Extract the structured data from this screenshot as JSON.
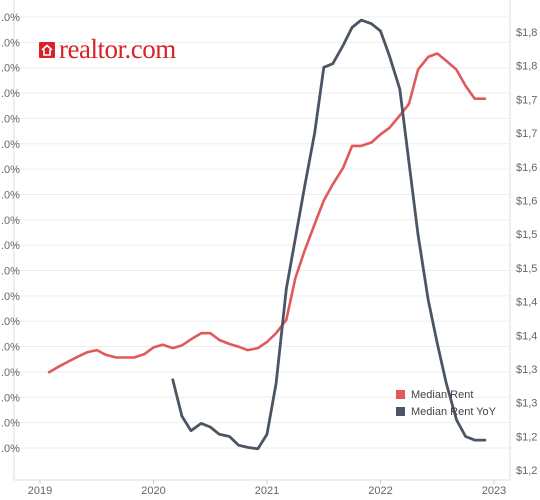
{
  "logo": {
    "text": "realtor.com",
    "color": "#d92228"
  },
  "chart_data": {
    "type": "line",
    "x_ticks": [
      "2019",
      "2020",
      "2021",
      "2022",
      "2023"
    ],
    "x_range": [
      2019.0,
      2023.1
    ],
    "left_axis": {
      "ticks": [
        ".0%",
        ".0%",
        ".0%",
        ".0%",
        ".0%",
        ".0%",
        ".0%",
        ".0%",
        ".0%",
        ".0%",
        ".0%",
        ".0%",
        ".0%",
        ".0%",
        ".0%",
        ".0%",
        ".0%",
        ".0%"
      ]
    },
    "right_axis": {
      "ticks": [
        "$1,8",
        "$1,8",
        "$1,7",
        "$1,7",
        "$1,6",
        "$1,6",
        "$1,5",
        "$1,5",
        "$1,4",
        "$1,4",
        "$1,3",
        "$1,3",
        "$1,2",
        "$1,2"
      ]
    },
    "grid": true,
    "legend_position": "bottom-right",
    "series": [
      {
        "name": "Median Rent",
        "color": "#e05a5c",
        "axis": "right",
        "x": [
          2019.08,
          2019.17,
          2019.25,
          2019.33,
          2019.42,
          2019.5,
          2019.58,
          2019.67,
          2019.75,
          2019.83,
          2019.92,
          2020.0,
          2020.08,
          2020.17,
          2020.25,
          2020.33,
          2020.42,
          2020.5,
          2020.58,
          2020.67,
          2020.75,
          2020.83,
          2020.92,
          2021.0,
          2021.08,
          2021.17,
          2021.25,
          2021.33,
          2021.42,
          2021.5,
          2021.58,
          2021.67,
          2021.75,
          2021.83,
          2021.92,
          2022.0,
          2022.08,
          2022.17,
          2022.25,
          2022.33,
          2022.42,
          2022.5,
          2022.58,
          2022.67,
          2022.75,
          2022.83,
          2022.92
        ],
        "y": [
          1347,
          1356,
          1363,
          1370,
          1377,
          1380,
          1373,
          1369,
          1369,
          1369,
          1374,
          1384,
          1388,
          1383,
          1387,
          1396,
          1405,
          1405,
          1395,
          1389,
          1385,
          1380,
          1383,
          1392,
          1405,
          1425,
          1487,
          1527,
          1567,
          1602,
          1626,
          1650,
          1683,
          1683,
          1688,
          1700,
          1710,
          1728,
          1745,
          1796,
          1815,
          1820,
          1809,
          1796,
          1772,
          1753,
          1753
        ]
      },
      {
        "name": "Median Rent YoY",
        "color": "#4b5563",
        "axis": "left",
        "x": [
          2020.17,
          2020.25,
          2020.33,
          2020.42,
          2020.5,
          2020.58,
          2020.67,
          2020.75,
          2020.83,
          2020.92,
          2021.0,
          2021.08,
          2021.17,
          2021.25,
          2021.33,
          2021.42,
          2021.5,
          2021.58,
          2021.67,
          2021.75,
          2021.83,
          2021.92,
          2022.0,
          2022.08,
          2022.17,
          2022.25,
          2022.33,
          2022.42,
          2022.5,
          2022.58,
          2022.67,
          2022.75,
          2022.83,
          2022.92
        ],
        "y": [
          32,
          27,
          25,
          26,
          25.5,
          24.5,
          24.2,
          23,
          22.7,
          22.5,
          24.5,
          31.5,
          44.5,
          51.5,
          58.5,
          66,
          75,
          75.5,
          78,
          80.5,
          81.5,
          81,
          80,
          76.5,
          72,
          62,
          52,
          43,
          37,
          31.5,
          26.5,
          24.2,
          23.7,
          23.7
        ]
      }
    ]
  }
}
